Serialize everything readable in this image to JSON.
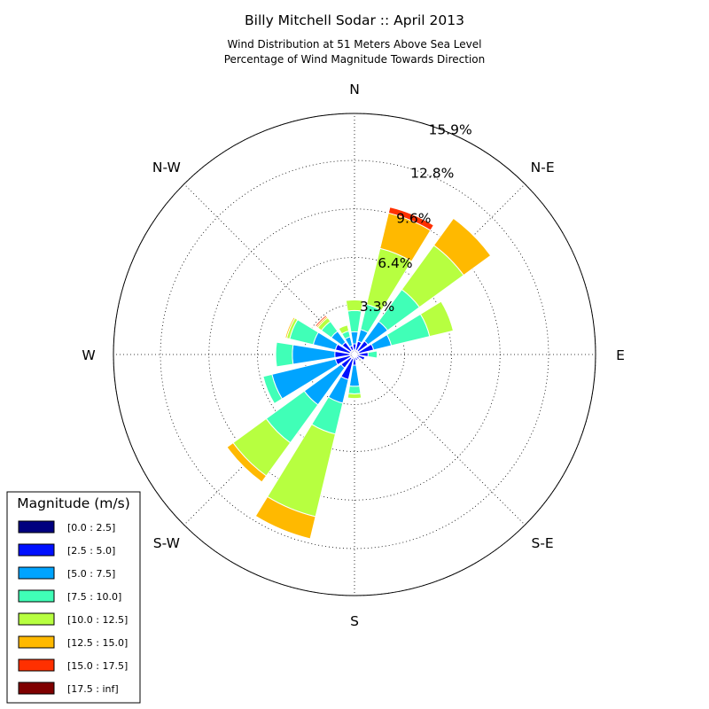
{
  "chart_data": {
    "type": "windrose",
    "title": "Billy Mitchell Sodar :: April 2013",
    "subtitle_line1": "Wind Distribution at 51 Meters Above Sea Level",
    "subtitle_line2": "Percentage of Wind Magnitude Towards Direction",
    "directions": [
      "N",
      "N-E",
      "E",
      "S-E",
      "S",
      "S-W",
      "W",
      "N-W"
    ],
    "radial_max": 15.9,
    "radial_ticks": [
      3.3,
      6.4,
      9.6,
      12.8,
      15.9
    ],
    "radial_tick_labels": [
      "3.3%",
      "6.4%",
      "9.6%",
      "12.8%",
      "15.9%"
    ],
    "sector_angles_deg": [
      0,
      22.5,
      45,
      67.5,
      90,
      112.5,
      135,
      157.5,
      180,
      202.5,
      225,
      247.5,
      270,
      292.5,
      315,
      337.5
    ],
    "legend_title": "Magnitude (m/s)",
    "series": [
      {
        "name": "[0.0 : 2.5]",
        "color": "#00007f",
        "values": [
          0.3,
          0.3,
          0.3,
          0.3,
          0.3,
          0.2,
          0.2,
          0.2,
          0.2,
          0.3,
          0.3,
          0.3,
          0.3,
          0.3,
          0.3,
          0.3
        ]
      },
      {
        "name": "[2.5 : 5.0]",
        "color": "#0010ff",
        "values": [
          0.4,
          0.6,
          0.8,
          1.0,
          0.6,
          0.5,
          0.2,
          0.2,
          0.5,
          1.4,
          0.8,
          1.0,
          1.0,
          1.0,
          0.7,
          0.3
        ]
      },
      {
        "name": "[5.0 : 7.5]",
        "color": "#00a4ff",
        "values": [
          0.8,
          0.8,
          1.6,
          1.2,
          0.0,
          0.0,
          0.0,
          0.0,
          1.4,
          1.6,
          3.0,
          4.3,
          2.8,
          1.5,
          0.9,
          0.6
        ]
      },
      {
        "name": "[7.5 : 10.0]",
        "color": "#40ffb7",
        "values": [
          1.4,
          1.7,
          2.6,
          2.6,
          0.6,
          0.0,
          0.0,
          0.0,
          0.5,
          2.1,
          3.1,
          0.6,
          1.1,
          1.6,
          0.8,
          0.4
        ]
      },
      {
        "name": "[10.0 : 12.5]",
        "color": "#b7ff40",
        "values": [
          0.7,
          3.8,
          3.6,
          1.6,
          0.0,
          0.0,
          0.0,
          0.0,
          0.3,
          5.6,
          2.7,
          0.0,
          0.0,
          0.2,
          0.3,
          0.4
        ]
      },
      {
        "name": "[12.5 : 15.0]",
        "color": "#ffb900",
        "values": [
          0.0,
          2.4,
          2.2,
          0.0,
          0.0,
          0.0,
          0.0,
          0.0,
          0.0,
          1.5,
          0.5,
          0.0,
          0.0,
          0.1,
          0.1,
          0.0
        ]
      },
      {
        "name": "[15.0 : 17.5]",
        "color": "#ff3000",
        "values": [
          0.0,
          0.4,
          0.0,
          0.0,
          0.0,
          0.0,
          0.0,
          0.0,
          0.0,
          0.0,
          0.0,
          0.0,
          0.0,
          0.0,
          0.1,
          0.0
        ]
      },
      {
        "name": "[17.5 : inf]",
        "color": "#7f0000",
        "values": [
          0.0,
          0.0,
          0.0,
          0.0,
          0.0,
          0.0,
          0.0,
          0.0,
          0.0,
          0.0,
          0.0,
          0.0,
          0.0,
          0.0,
          0.0,
          0.0
        ]
      }
    ],
    "grid": true,
    "legend_position": "bottom-left"
  }
}
